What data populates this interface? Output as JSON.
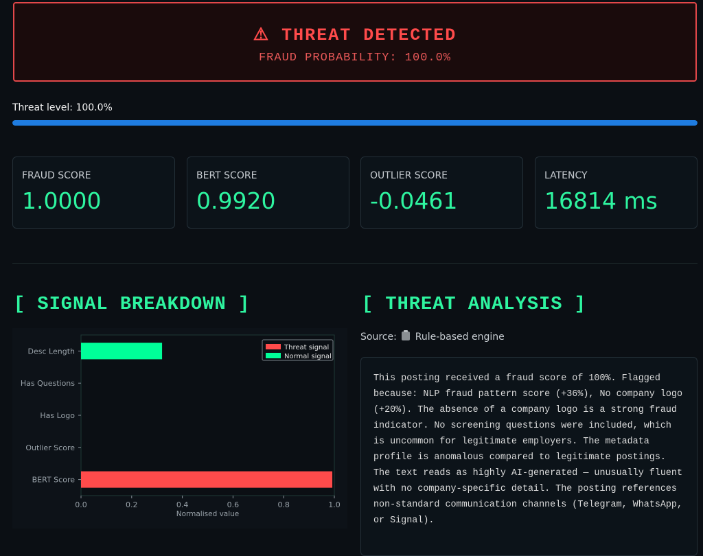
{
  "banner": {
    "title": "⚠ THREAT DETECTED",
    "subtitle": "FRAUD PROBABILITY: 100.0%"
  },
  "progress": {
    "label": "Threat level: 100.0%",
    "value": 1.0,
    "color": "#1f7ce0"
  },
  "metrics": [
    {
      "label": "FRAUD SCORE",
      "value": "1.0000"
    },
    {
      "label": "BERT SCORE",
      "value": "0.9920"
    },
    {
      "label": "OUTLIER SCORE",
      "value": "-0.0461"
    },
    {
      "label": "LATENCY",
      "value": "16814 ms"
    }
  ],
  "sections": {
    "signal_title": "[ SIGNAL BREAKDOWN ]",
    "analysis_title": "[ THREAT ANALYSIS ]"
  },
  "analysis": {
    "source_prefix": "Source:",
    "source_icon": "clipboard-icon",
    "source_name": "Rule-based engine",
    "text": "This posting received a fraud score of 100%. Flagged because: NLP fraud pattern score (+36%), No company logo (+20%). The absence of a company logo is a strong fraud indicator. No screening questions were included, which is uncommon for legitimate employers. The metadata profile is anomalous compared to legitimate postings. The text reads as highly AI-generated — unusually fluent with no company-specific detail. The posting references non-standard communication channels (Telegram, WhatsApp, or Signal)."
  },
  "colors": {
    "threat": "#ff4b4b",
    "normal": "#00ff99",
    "accent": "#2ef5a0"
  },
  "chart_data": {
    "type": "bar",
    "orientation": "horizontal",
    "categories": [
      "Desc Length",
      "Has Questions",
      "Has Logo",
      "Outlier Score",
      "BERT Score"
    ],
    "series": [
      {
        "name": "Threat signal",
        "color": "#ff4b4b",
        "values": [
          0,
          0,
          0,
          0,
          0.992
        ]
      },
      {
        "name": "Normal signal",
        "color": "#00ff99",
        "values": [
          0.32,
          0,
          0,
          0,
          0
        ]
      }
    ],
    "xlabel": "Normalised value",
    "ylabel": "",
    "xlim": [
      0,
      1.0
    ],
    "xticks": [
      "0.0",
      "0.2",
      "0.4",
      "0.6",
      "0.8",
      "1.0"
    ],
    "legend": "top-right",
    "grid": false
  }
}
